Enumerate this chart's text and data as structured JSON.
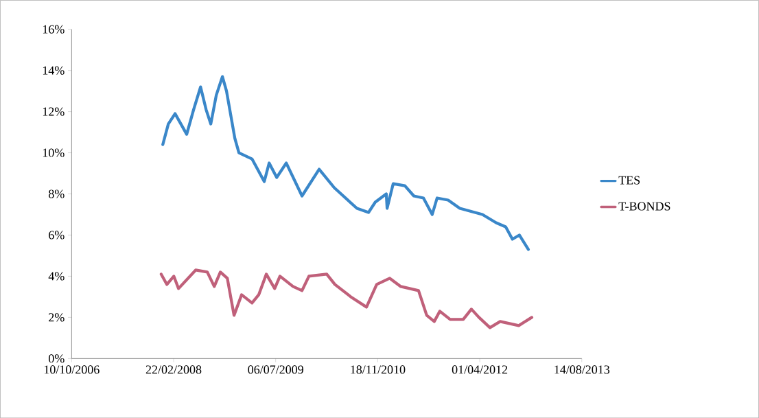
{
  "chart_data": {
    "type": "line",
    "xlim": [
      "2006-10-10",
      "2013-08-14"
    ],
    "xticks": [
      {
        "value": "2006-10-10",
        "label": "10/10/2006"
      },
      {
        "value": "2008-02-22",
        "label": "22/02/2008"
      },
      {
        "value": "2009-07-06",
        "label": "06/07/2009"
      },
      {
        "value": "2010-11-18",
        "label": "18/11/2010"
      },
      {
        "value": "2012-04-01",
        "label": "01/04/2012"
      },
      {
        "value": "2013-08-14",
        "label": "14/08/2013"
      }
    ],
    "ylim": [
      0,
      16
    ],
    "yticks": [
      {
        "value": 0,
        "label": "0%"
      },
      {
        "value": 2,
        "label": "2%"
      },
      {
        "value": 4,
        "label": "4%"
      },
      {
        "value": 6,
        "label": "6%"
      },
      {
        "value": 8,
        "label": "8%"
      },
      {
        "value": 10,
        "label": "10%"
      },
      {
        "value": 12,
        "label": "12%"
      },
      {
        "value": 14,
        "label": "14%"
      },
      {
        "value": 16,
        "label": "16%"
      }
    ],
    "grid": false,
    "legend": "right",
    "series": [
      {
        "name": "TES",
        "color": "#3a87c9",
        "x": [
          "2007-12-31",
          "2008-01-27",
          "2008-02-29",
          "2008-04-26",
          "2008-05-30",
          "2008-07-03",
          "2008-07-30",
          "2008-08-22",
          "2008-09-18",
          "2008-10-18",
          "2008-11-07",
          "2008-12-18",
          "2009-01-07",
          "2009-03-12",
          "2009-05-11",
          "2009-06-04",
          "2009-07-11",
          "2009-08-27",
          "2009-11-12",
          "2010-02-04",
          "2010-04-19",
          "2010-08-08",
          "2010-10-04",
          "2010-11-06",
          "2010-12-30",
          "2011-01-03",
          "2011-02-02",
          "2011-03-31",
          "2011-05-14",
          "2011-06-30",
          "2011-08-12",
          "2011-09-05",
          "2011-10-29",
          "2011-12-25",
          "2012-04-14",
          "2012-06-20",
          "2012-08-06",
          "2012-09-08",
          "2012-10-12",
          "2012-11-25"
        ],
        "values": [
          10.4,
          11.4,
          11.9,
          10.9,
          12.1,
          13.2,
          12.1,
          11.4,
          12.8,
          13.7,
          13.0,
          10.7,
          10.0,
          9.7,
          8.6,
          9.5,
          8.8,
          9.5,
          7.9,
          9.2,
          8.3,
          7.3,
          7.1,
          7.6,
          8.0,
          7.3,
          8.5,
          8.4,
          7.9,
          7.8,
          7.0,
          7.8,
          7.7,
          7.3,
          7.0,
          6.6,
          6.4,
          5.8,
          6.0,
          5.3
        ]
      },
      {
        "name": "T-BONDS",
        "color": "#c0607a",
        "x": [
          "2007-12-23",
          "2008-01-20",
          "2008-02-23",
          "2008-03-17",
          "2008-06-09",
          "2008-08-05",
          "2008-09-08",
          "2008-10-08",
          "2008-11-11",
          "2008-12-14",
          "2009-01-20",
          "2009-03-12",
          "2009-04-14",
          "2009-05-21",
          "2009-07-01",
          "2009-07-27",
          "2009-09-29",
          "2009-11-12",
          "2009-12-16",
          "2010-03-13",
          "2010-04-22",
          "2010-07-09",
          "2010-09-24",
          "2010-11-13",
          "2011-01-16",
          "2011-03-11",
          "2011-06-06",
          "2011-07-16",
          "2011-08-22",
          "2011-09-18",
          "2011-11-08",
          "2012-01-11",
          "2012-02-20",
          "2012-03-28",
          "2012-05-21",
          "2012-07-10",
          "2012-10-09",
          "2012-12-12"
        ],
        "values": [
          4.1,
          3.6,
          4.0,
          3.4,
          4.3,
          4.2,
          3.5,
          4.2,
          3.9,
          2.1,
          3.1,
          2.7,
          3.1,
          4.1,
          3.4,
          4.0,
          3.5,
          3.3,
          4.0,
          4.1,
          3.6,
          3.0,
          2.5,
          3.6,
          3.9,
          3.5,
          3.3,
          2.1,
          1.8,
          2.3,
          1.9,
          1.9,
          2.4,
          2.0,
          1.5,
          1.8,
          1.6,
          2.0
        ]
      }
    ]
  }
}
